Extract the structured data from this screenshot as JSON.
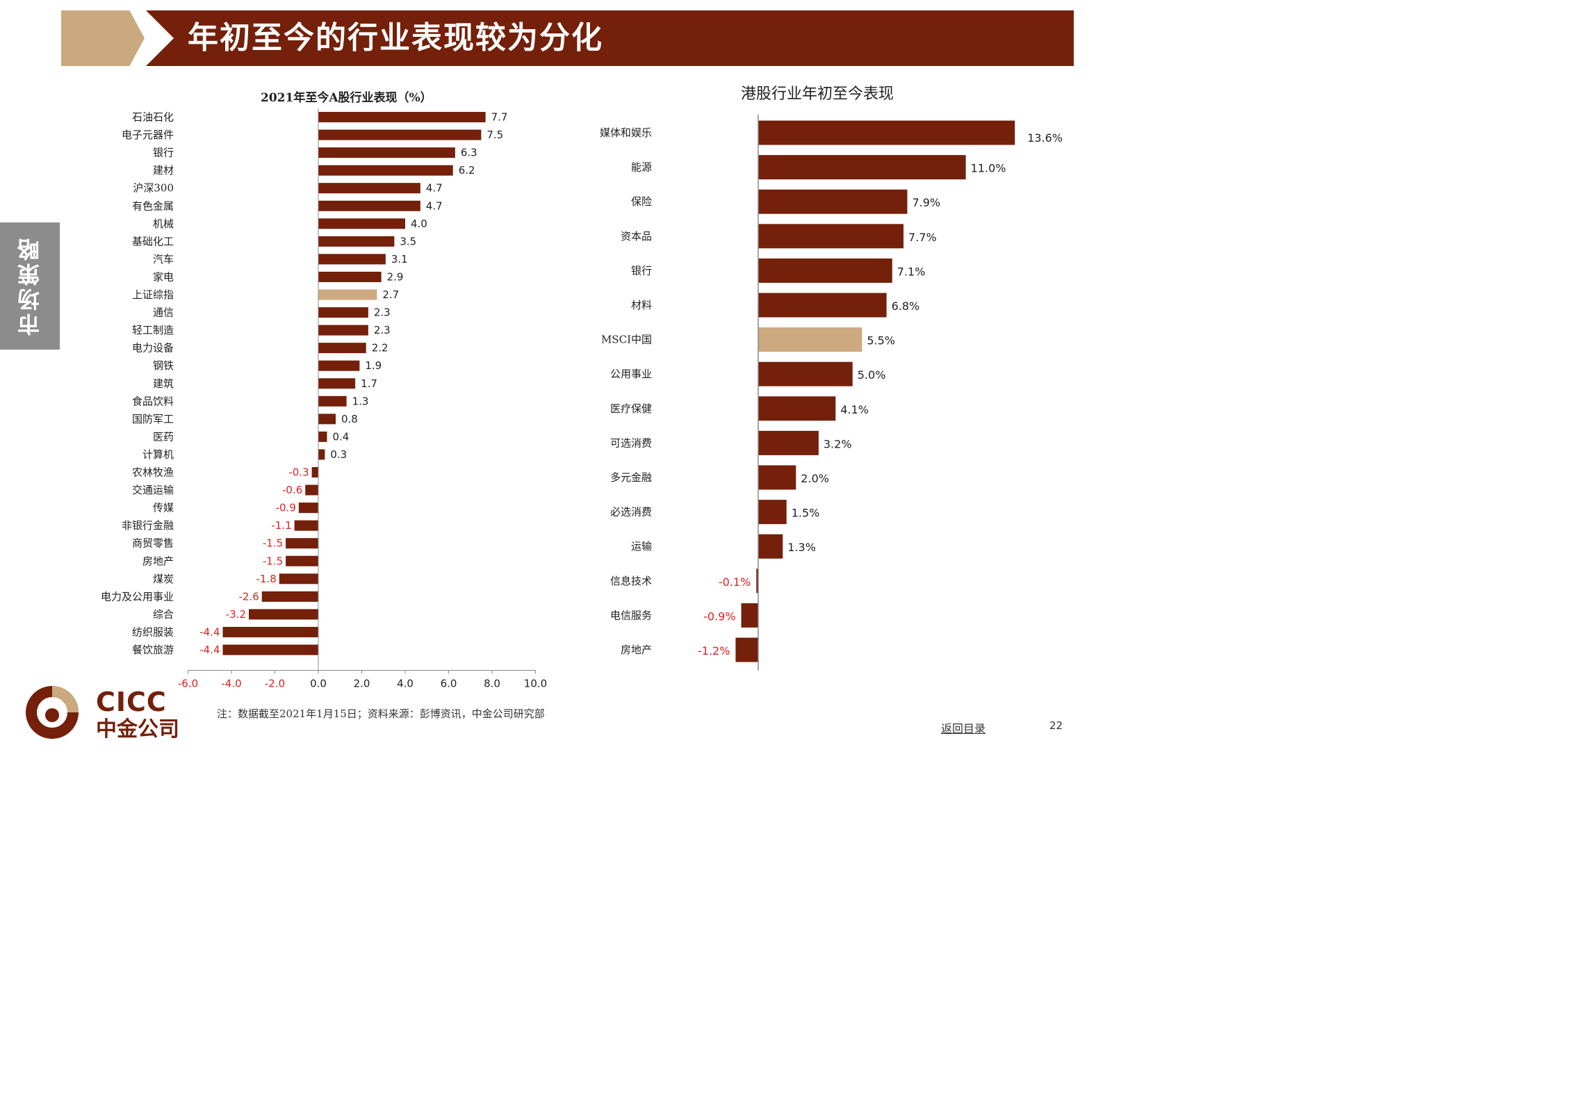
{
  "header": {
    "title": "年初至今的行业表现较为分化"
  },
  "side_tab": {
    "label": "市场策略"
  },
  "colors": {
    "bar_main": "#74200a",
    "bar_highlight": "#cdaa80",
    "negative_label": "#e02020",
    "header_bg": "#74200a",
    "header_tan": "#c9a97d",
    "side_tab_bg": "#8c8c8c"
  },
  "chart_data": [
    {
      "type": "bar",
      "orientation": "horizontal",
      "title": "2021年至今A股行业表现（%）",
      "categories": [
        "石油石化",
        "电子元器件",
        "银行",
        "建材",
        "沪深300",
        "有色金属",
        "机械",
        "基础化工",
        "汽车",
        "家电",
        "上证综指",
        "通信",
        "轻工制造",
        "电力设备",
        "钢铁",
        "建筑",
        "食品饮料",
        "国防军工",
        "医药",
        "计算机",
        "农林牧渔",
        "交通运输",
        "传媒",
        "非银行金融",
        "商贸零售",
        "房地产",
        "煤炭",
        "电力及公用事业",
        "综合",
        "纺织服装",
        "餐饮旅游"
      ],
      "values": [
        7.7,
        7.5,
        6.3,
        6.2,
        4.7,
        4.7,
        4.0,
        3.5,
        3.1,
        2.9,
        2.7,
        2.3,
        2.3,
        2.2,
        1.9,
        1.7,
        1.3,
        0.8,
        0.4,
        0.3,
        -0.3,
        -0.6,
        -0.9,
        -1.1,
        -1.5,
        -1.5,
        -1.8,
        -2.6,
        -3.2,
        -4.4,
        -4.4
      ],
      "value_labels": [
        "7.7",
        "7.5",
        "6.3",
        "6.2",
        "4.7",
        "4.7",
        "4.0",
        "3.5",
        "3.1",
        "2.9",
        "2.7",
        "2.3",
        "2.3",
        "2.2",
        "1.9",
        "1.7",
        "1.3",
        "0.8",
        "0.4",
        "0.3",
        "-0.3",
        "-0.6",
        "-0.9",
        "-1.1",
        "-1.5",
        "-1.5",
        "-1.8",
        "-2.6",
        "-3.2",
        "-4.4",
        "-4.4"
      ],
      "highlight": [
        "上证综指"
      ],
      "xlim": [
        -6.0,
        10.0
      ],
      "xticks": [
        -6.0,
        -4.0,
        -2.0,
        0.0,
        2.0,
        4.0,
        6.0,
        8.0,
        10.0
      ],
      "xtick_labels": [
        "-6.0",
        "-4.0",
        "-2.0",
        "0.0",
        "2.0",
        "4.0",
        "6.0",
        "8.0",
        "10.0"
      ],
      "grid": false
    },
    {
      "type": "bar",
      "orientation": "horizontal",
      "title": "港股行业年初至今表现",
      "categories": [
        "媒体和娱乐",
        "能源",
        "保险",
        "资本品",
        "银行",
        "材料",
        "MSCI中国",
        "公用事业",
        "医疗保健",
        "可选消费",
        "多元金融",
        "必选消费",
        "运输",
        "信息技术",
        "电信服务",
        "房地产"
      ],
      "values": [
        13.6,
        11.0,
        7.9,
        7.7,
        7.1,
        6.8,
        5.5,
        5.0,
        4.1,
        3.2,
        2.0,
        1.5,
        1.3,
        -0.1,
        -0.9,
        -1.2
      ],
      "value_labels": [
        "13.6%",
        "11.0%",
        "7.9%",
        "7.7%",
        "7.1%",
        "6.8%",
        "5.5%",
        "5.0%",
        "4.1%",
        "3.2%",
        "2.0%",
        "1.5%",
        "1.3%",
        "-0.1%",
        "-0.9%",
        "-1.2%"
      ],
      "highlight": [
        "MSCI中国"
      ],
      "unit": "%",
      "grid": false
    }
  ],
  "footer": {
    "note": "注：数据截至2021年1月15日；资料来源：彭博资讯，中金公司研究部",
    "back_link": "返回目录",
    "page_number": "22"
  },
  "logo": {
    "en": "CICC",
    "cn": "中金公司"
  }
}
